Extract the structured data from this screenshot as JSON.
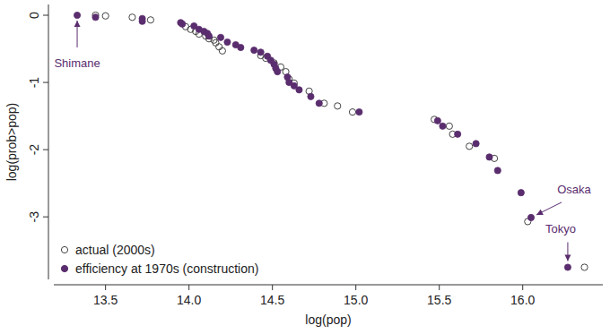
{
  "chart_data": {
    "type": "scatter",
    "x_label": "log(pop)",
    "y_label": "log(prob>pop)",
    "xlim": [
      13.19,
      16.48
    ],
    "ylim": [
      -3.93,
      0.16
    ],
    "xticks": [
      13.5,
      {
        "value": 14,
        "label": "14.0"
      },
      14.5,
      {
        "value": 15,
        "label": "15.0"
      },
      15.5,
      {
        "value": 16,
        "label": "16.0"
      }
    ],
    "yticks": [
      0,
      -1,
      -2,
      -3
    ],
    "legend": "bottom-left",
    "series": [
      {
        "name": "actual (2000s)",
        "color": "#444444",
        "marker": "open-circle",
        "x": [
          13.44,
          13.5,
          13.66,
          13.77,
          13.98,
          14.01,
          14.04,
          14.06,
          14.1,
          14.12,
          14.15,
          14.16,
          14.18,
          14.2,
          14.43,
          14.46,
          14.51,
          14.55,
          14.58,
          14.6,
          14.63,
          14.72,
          14.81,
          14.89,
          14.98,
          15.47,
          15.56,
          15.58,
          15.68,
          15.83,
          16.03,
          16.37
        ],
        "values": [
          0.0,
          -0.01,
          -0.03,
          -0.07,
          -0.17,
          -0.21,
          -0.24,
          -0.28,
          -0.31,
          -0.35,
          -0.37,
          -0.41,
          -0.47,
          -0.53,
          -0.6,
          -0.64,
          -0.71,
          -0.77,
          -0.84,
          -0.95,
          -1.01,
          -1.13,
          -1.31,
          -1.35,
          -1.44,
          -1.55,
          -1.65,
          -1.77,
          -1.95,
          -2.13,
          -3.07,
          -3.75
        ]
      },
      {
        "name": "efficiency at 1970s (construction)",
        "color": "#5a2d6e",
        "marker": "filled-circle",
        "x": [
          13.33,
          13.44,
          13.72,
          13.72,
          13.95,
          13.96,
          14.03,
          14.06,
          14.09,
          14.11,
          14.12,
          14.19,
          14.23,
          14.28,
          14.31,
          14.39,
          14.43,
          14.47,
          14.49,
          14.51,
          14.52,
          14.53,
          14.59,
          14.6,
          14.63,
          14.66,
          14.73,
          14.78,
          15.02,
          15.49,
          15.52,
          15.61,
          15.72,
          15.8,
          15.85,
          15.99,
          16.05,
          16.27
        ],
        "values": [
          0.0,
          -0.03,
          -0.05,
          -0.09,
          -0.11,
          -0.13,
          -0.16,
          -0.21,
          -0.24,
          -0.27,
          -0.31,
          -0.33,
          -0.4,
          -0.44,
          -0.48,
          -0.52,
          -0.55,
          -0.61,
          -0.67,
          -0.73,
          -0.79,
          -0.84,
          -0.92,
          -1.0,
          -1.05,
          -1.11,
          -1.21,
          -1.31,
          -1.44,
          -1.57,
          -1.65,
          -1.77,
          -1.91,
          -2.11,
          -2.31,
          -2.64,
          -3.01,
          -3.75
        ]
      }
    ],
    "annotations": [
      {
        "text": "Shimane",
        "x": 13.33,
        "y": 0.0
      },
      {
        "text": "Osaka",
        "x": 16.05,
        "y": -3.01
      },
      {
        "text": "Tokyo",
        "x": 16.27,
        "y": -3.75
      }
    ]
  }
}
